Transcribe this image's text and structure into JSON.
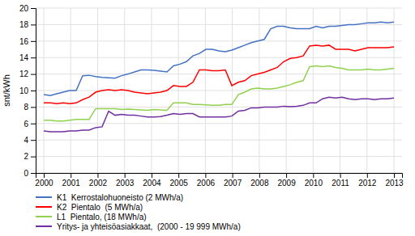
{
  "chart_data": {
    "type": "line",
    "ylabel": "snt/kWh",
    "x": [
      2000,
      2000.240741,
      2000.481481,
      2000.722222,
      2000.962963,
      2001.203704,
      2001.444444,
      2001.685185,
      2001.925926,
      2002.166667,
      2002.407407,
      2002.648148,
      2002.888889,
      2003.12963,
      2003.37037,
      2003.611111,
      2003.851852,
      2004.092593,
      2004.333333,
      2004.574074,
      2004.814815,
      2005.055556,
      2005.296296,
      2005.537037,
      2005.777778,
      2006.018519,
      2006.259259,
      2006.5,
      2006.740741,
      2006.981481,
      2007.222222,
      2007.462963,
      2007.703704,
      2007.944444,
      2008.185185,
      2008.425926,
      2008.666667,
      2008.907407,
      2009.148148,
      2009.388889,
      2009.62963,
      2009.87037,
      2010.111111,
      2010.351852,
      2010.592593,
      2010.833333,
      2011.074074,
      2011.314815,
      2011.555556,
      2011.796296,
      2012.037037,
      2012.277778,
      2012.518519,
      2012.759259,
      2013
    ],
    "xlim": [
      1999.7,
      2013.3
    ],
    "xticks": [
      2000,
      2001,
      2002,
      2003,
      2004,
      2005,
      2006,
      2007,
      2008,
      2009,
      2010,
      2011,
      2012,
      2013
    ],
    "ylim": [
      0,
      20
    ],
    "yticks": [
      0,
      2,
      4,
      6,
      8,
      10,
      12,
      14,
      16,
      18,
      20
    ],
    "grid": true,
    "legend": "bottom",
    "series": [
      {
        "name": "K1  Kerrostalohuoneisto (2 MWh/a)",
        "color": "#4472c4",
        "values": [
          9.5,
          9.4,
          9.6,
          9.8,
          10.0,
          10.0,
          11.8,
          11.85,
          11.7,
          11.6,
          11.55,
          11.5,
          11.8,
          12.0,
          12.25,
          12.5,
          12.5,
          12.45,
          12.35,
          12.25,
          13.0,
          13.2,
          13.5,
          14.2,
          14.5,
          15.0,
          15.0,
          14.8,
          14.7,
          14.9,
          15.2,
          15.5,
          15.8,
          16.0,
          16.2,
          17.5,
          17.8,
          17.8,
          17.6,
          17.5,
          17.5,
          17.5,
          17.8,
          17.6,
          17.8,
          17.8,
          17.9,
          18.0,
          18.0,
          18.1,
          18.2,
          18.2,
          18.3,
          18.2,
          18.3
        ]
      },
      {
        "name": "K2  Pientalo  (5 MWh/a)",
        "color": "#ff0000",
        "values": [
          8.5,
          8.5,
          8.4,
          8.5,
          8.4,
          8.5,
          8.9,
          9.2,
          9.8,
          10.0,
          10.1,
          10.0,
          10.1,
          10.0,
          9.8,
          9.7,
          9.6,
          9.7,
          9.8,
          10.0,
          10.6,
          10.5,
          10.5,
          11.0,
          12.5,
          12.5,
          12.4,
          12.4,
          12.5,
          10.6,
          11.0,
          11.2,
          11.8,
          12.0,
          12.2,
          12.5,
          12.8,
          13.5,
          13.9,
          14.0,
          14.2,
          15.4,
          15.5,
          15.4,
          15.5,
          15.0,
          15.0,
          15.0,
          14.8,
          15.0,
          15.2,
          15.2,
          15.2,
          15.2,
          15.3
        ]
      },
      {
        "name": "L1  Pientalo, (18 MWh/a)",
        "color": "#92d050",
        "values": [
          6.4,
          6.4,
          6.3,
          6.3,
          6.4,
          6.5,
          6.5,
          6.5,
          7.8,
          7.8,
          7.8,
          7.8,
          7.7,
          7.75,
          7.7,
          7.65,
          7.6,
          7.7,
          7.65,
          7.6,
          8.5,
          8.5,
          8.5,
          8.3,
          8.3,
          8.25,
          8.2,
          8.2,
          8.3,
          8.3,
          9.5,
          9.8,
          10.2,
          10.3,
          10.2,
          10.2,
          10.3,
          10.5,
          10.7,
          11.0,
          11.2,
          12.9,
          13.0,
          12.9,
          13.0,
          12.8,
          12.7,
          12.5,
          12.5,
          12.5,
          12.6,
          12.5,
          12.5,
          12.6,
          12.7
        ]
      },
      {
        "name": "Yritys- ja yhteisöasiakkaat,  (2000 - 19 999 MWh/a)",
        "color": "#7030a0",
        "values": [
          5.1,
          5.0,
          5.0,
          5.0,
          5.1,
          5.1,
          5.2,
          5.2,
          5.5,
          5.6,
          7.5,
          7.0,
          7.1,
          7.0,
          7.0,
          6.9,
          6.8,
          6.8,
          6.85,
          7.0,
          7.2,
          7.1,
          7.2,
          7.2,
          6.8,
          6.8,
          6.8,
          6.8,
          6.8,
          6.9,
          7.5,
          7.6,
          7.9,
          7.9,
          8.0,
          8.0,
          8.0,
          8.1,
          8.05,
          8.1,
          8.2,
          8.5,
          8.5,
          9.0,
          9.2,
          9.1,
          9.2,
          9.0,
          8.9,
          9.0,
          9.0,
          8.9,
          9.0,
          9.0,
          9.1
        ]
      }
    ]
  }
}
